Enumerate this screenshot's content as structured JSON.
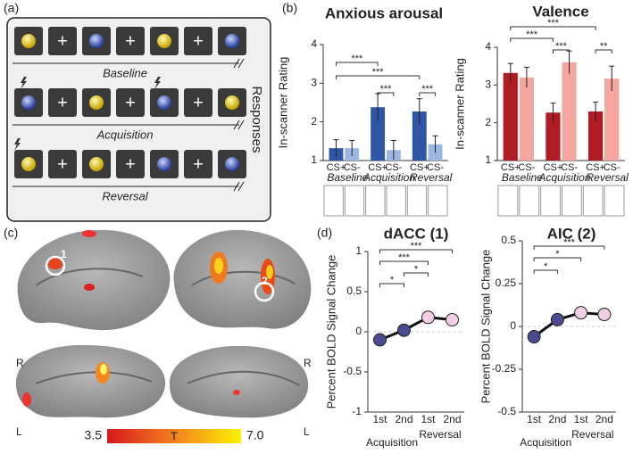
{
  "panels": {
    "a": "(a)",
    "b": "(b)",
    "c": "(c)",
    "d": "(d)"
  },
  "task": {
    "fixation": "+",
    "phases": [
      "Baseline",
      "Acquisition",
      "Reversal"
    ],
    "responses": "Responses"
  },
  "brain": {
    "hemispheres": [
      "R",
      "R",
      "L",
      "L"
    ],
    "rois": [
      "1",
      "2"
    ],
    "colorbar": {
      "label": "T",
      "ticks": [
        3.5,
        {
          "value": 7,
          "label": "7.0"
        }
      ]
    }
  },
  "chart_data": [
    {
      "type": "bar",
      "title": "Anxious arousal",
      "ylabel": "In-scanner Rating",
      "categories": [
        "Baseline",
        "Acquisition",
        "Reversal"
      ],
      "series": [
        {
          "name": "CS+",
          "color": "#2f56a6",
          "values": [
            1.32,
            2.38,
            2.27
          ],
          "errors": [
            0.22,
            0.35,
            0.33
          ]
        },
        {
          "name": "CS-",
          "color": "#9cb7e2",
          "values": [
            1.32,
            1.27,
            1.42
          ],
          "errors": [
            0.2,
            0.25,
            0.22
          ]
        }
      ],
      "ylim": [
        1,
        4
      ],
      "yticks": [
        1,
        2,
        3,
        4
      ],
      "significance": [
        "***",
        "***",
        "***",
        "***"
      ]
    },
    {
      "type": "bar",
      "title": "Valence",
      "ylabel": "In-scanner Rating",
      "categories": [
        "Baseline",
        "Acquisition",
        "Reversal"
      ],
      "series": [
        {
          "name": "CS+",
          "color": "#b01c24",
          "values": [
            3.32,
            2.27,
            2.3
          ],
          "errors": [
            0.25,
            0.25,
            0.25
          ]
        },
        {
          "name": "CS-",
          "color": "#f4a6a0",
          "values": [
            3.2,
            3.6,
            3.17
          ],
          "errors": [
            0.27,
            0.3,
            0.33
          ]
        }
      ],
      "ylim": [
        1,
        4
      ],
      "yticks": [
        1,
        2,
        3,
        4
      ],
      "significance": [
        "***",
        "***",
        "***",
        "**"
      ]
    },
    {
      "type": "line",
      "title": "dACC (1)",
      "ylabel": "Percent BOLD Signal Change",
      "categories": [
        "1st",
        "2nd",
        "1st",
        "2nd"
      ],
      "groups": [
        "Acquisition",
        "Reversal"
      ],
      "values": [
        -0.1,
        0.02,
        0.18,
        0.15
      ],
      "errors": [
        0.06,
        0.05,
        0.06,
        0.06
      ],
      "colors": [
        "#4b4a90",
        "#4b4a90",
        "#f3cfe3",
        "#f3cfe3"
      ],
      "ylim": [
        -1,
        1
      ],
      "yticks": [
        -1,
        -0.5,
        0,
        0.5,
        1
      ],
      "significance": [
        "***",
        "***",
        "*",
        "*"
      ]
    },
    {
      "type": "line",
      "title": "AIC (2)",
      "ylabel": "Percent BOLD Signal Change",
      "categories": [
        "1st",
        "2nd",
        "1st",
        "2nd"
      ],
      "groups": [
        "Acquisition",
        "Reversal"
      ],
      "values": [
        -0.06,
        0.04,
        0.08,
        0.07
      ],
      "errors": [
        0.03,
        0.03,
        0.03,
        0.03
      ],
      "colors": [
        "#4b4a90",
        "#4b4a90",
        "#f3cfe3",
        "#f3cfe3"
      ],
      "ylim": [
        -0.5,
        0.5
      ],
      "yticks": [
        -0.5,
        -0.25,
        0,
        0.25,
        0.5
      ],
      "significance": [
        "***",
        "*",
        "*"
      ]
    }
  ]
}
